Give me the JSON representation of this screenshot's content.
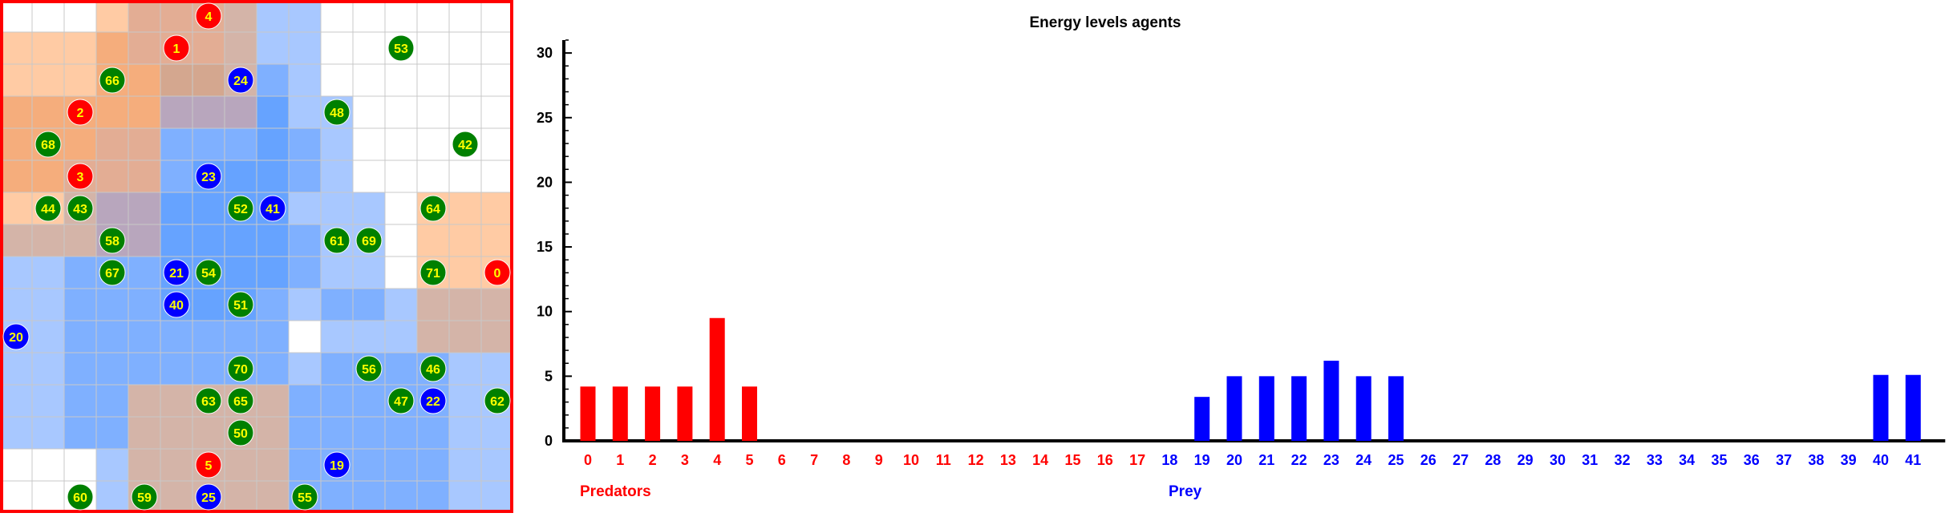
{
  "colors": {
    "predator": "#ff0000",
    "prey": "#0000ff",
    "grass": "#008000",
    "agent_label": "#ffff00",
    "frame": "#ff0000",
    "axis": "#000000"
  },
  "grid": {
    "rows": 16,
    "cols": 16,
    "cell_colors": [
      [
        "#ffffff",
        "#ffffff",
        "#ffffff",
        "#ffcba4",
        "#e3ad94",
        "#e3ad94",
        "#e3ad94",
        "#d4b4a8",
        "#a8c8ff",
        "#a8c8ff",
        "#ffffff",
        "#ffffff",
        "#ffffff",
        "#ffffff",
        "#ffffff",
        "#ffffff"
      ],
      [
        "#ffcba4",
        "#ffcba4",
        "#ffcba4",
        "#f5ad7c",
        "#e3ad94",
        "#e3ad94",
        "#e3ad94",
        "#d4b4a8",
        "#a8c8ff",
        "#a8c8ff",
        "#ffffff",
        "#ffffff",
        "#ffffff",
        "#ffffff",
        "#ffffff",
        "#ffffff"
      ],
      [
        "#ffcba4",
        "#ffcba4",
        "#ffcba4",
        "#f5ad7c",
        "#f5ad7c",
        "#d4a78f",
        "#d4a78f",
        "#d4b4a8",
        "#7fb0ff",
        "#a8c8ff",
        "#ffffff",
        "#ffffff",
        "#ffffff",
        "#ffffff",
        "#ffffff",
        "#ffffff"
      ],
      [
        "#f5ad7c",
        "#f5ad7c",
        "#f5ad7c",
        "#f5ad7c",
        "#f5ad7c",
        "#b8a6bd",
        "#b8a6bd",
        "#b8a6bd",
        "#66a3ff",
        "#a8c8ff",
        "#a8c8ff",
        "#ffffff",
        "#ffffff",
        "#ffffff",
        "#ffffff",
        "#ffffff"
      ],
      [
        "#f5ad7c",
        "#f5ad7c",
        "#f5ad7c",
        "#e3ad94",
        "#e3ad94",
        "#7fb0ff",
        "#7fb0ff",
        "#7fb0ff",
        "#66a3ff",
        "#7fb0ff",
        "#a8c8ff",
        "#ffffff",
        "#ffffff",
        "#ffffff",
        "#ffffff",
        "#ffffff"
      ],
      [
        "#f5ad7c",
        "#f5ad7c",
        "#e3ad94",
        "#e3ad94",
        "#e3ad94",
        "#7fb0ff",
        "#66a3ff",
        "#66a3ff",
        "#66a3ff",
        "#7fb0ff",
        "#a8c8ff",
        "#ffffff",
        "#ffffff",
        "#ffffff",
        "#ffffff",
        "#ffffff"
      ],
      [
        "#ffcba4",
        "#ffcba4",
        "#d4b4a8",
        "#b8a6bd",
        "#b8a6bd",
        "#66a3ff",
        "#66a3ff",
        "#66a3ff",
        "#66a3ff",
        "#a8c8ff",
        "#a8c8ff",
        "#a8c8ff",
        "#ffffff",
        "#ffcba4",
        "#ffcba4",
        "#ffcba4"
      ],
      [
        "#d4b4a8",
        "#d4b4a8",
        "#d4b4a8",
        "#b8a6bd",
        "#b8a6bd",
        "#66a3ff",
        "#66a3ff",
        "#66a3ff",
        "#66a3ff",
        "#7fb0ff",
        "#a8c8ff",
        "#a8c8ff",
        "#ffffff",
        "#ffcba4",
        "#ffcba4",
        "#ffcba4"
      ],
      [
        "#a8c8ff",
        "#a8c8ff",
        "#7fb0ff",
        "#7fb0ff",
        "#7fb0ff",
        "#66a3ff",
        "#66a3ff",
        "#66a3ff",
        "#66a3ff",
        "#7fb0ff",
        "#a8c8ff",
        "#a8c8ff",
        "#ffffff",
        "#ffcba4",
        "#ffcba4",
        "#ffcba4"
      ],
      [
        "#a8c8ff",
        "#a8c8ff",
        "#7fb0ff",
        "#7fb0ff",
        "#7fb0ff",
        "#66a3ff",
        "#66a3ff",
        "#66a3ff",
        "#7fb0ff",
        "#a8c8ff",
        "#7fb0ff",
        "#7fb0ff",
        "#a8c8ff",
        "#d4b4a8",
        "#d4b4a8",
        "#d4b4a8"
      ],
      [
        "#a8c8ff",
        "#a8c8ff",
        "#7fb0ff",
        "#7fb0ff",
        "#7fb0ff",
        "#7fb0ff",
        "#7fb0ff",
        "#7fb0ff",
        "#7fb0ff",
        "#ffffff",
        "#a8c8ff",
        "#a8c8ff",
        "#a8c8ff",
        "#d4b4a8",
        "#d4b4a8",
        "#d4b4a8"
      ],
      [
        "#a8c8ff",
        "#a8c8ff",
        "#7fb0ff",
        "#7fb0ff",
        "#7fb0ff",
        "#7fb0ff",
        "#7fb0ff",
        "#7fb0ff",
        "#7fb0ff",
        "#a8c8ff",
        "#7fb0ff",
        "#7fb0ff",
        "#7fb0ff",
        "#7fb0ff",
        "#a8c8ff",
        "#a8c8ff"
      ],
      [
        "#a8c8ff",
        "#a8c8ff",
        "#7fb0ff",
        "#7fb0ff",
        "#d4b4a8",
        "#d4b4a8",
        "#d4b4a8",
        "#d4b4a8",
        "#d4b4a8",
        "#7fb0ff",
        "#7fb0ff",
        "#7fb0ff",
        "#7fb0ff",
        "#7fb0ff",
        "#a8c8ff",
        "#a8c8ff"
      ],
      [
        "#a8c8ff",
        "#a8c8ff",
        "#7fb0ff",
        "#7fb0ff",
        "#d4b4a8",
        "#d4b4a8",
        "#d4b4a8",
        "#d4b4a8",
        "#d4b4a8",
        "#7fb0ff",
        "#7fb0ff",
        "#7fb0ff",
        "#7fb0ff",
        "#7fb0ff",
        "#a8c8ff",
        "#a8c8ff"
      ],
      [
        "#ffffff",
        "#ffffff",
        "#ffffff",
        "#a8c8ff",
        "#d4b4a8",
        "#d4b4a8",
        "#d4b4a8",
        "#d4b4a8",
        "#d4b4a8",
        "#7fb0ff",
        "#7fb0ff",
        "#7fb0ff",
        "#7fb0ff",
        "#7fb0ff",
        "#a8c8ff",
        "#a8c8ff"
      ],
      [
        "#ffffff",
        "#ffffff",
        "#ffffff",
        "#a8c8ff",
        "#d4b4a8",
        "#d4b4a8",
        "#d4b4a8",
        "#d4b4a8",
        "#d4b4a8",
        "#7fb0ff",
        "#7fb0ff",
        "#7fb0ff",
        "#7fb0ff",
        "#7fb0ff",
        "#a8c8ff",
        "#a8c8ff"
      ]
    ],
    "agents": [
      {
        "id": "4",
        "kind": "predator",
        "col": 6,
        "row": 0
      },
      {
        "id": "1",
        "kind": "predator",
        "col": 5,
        "row": 1
      },
      {
        "id": "53",
        "kind": "grass",
        "col": 12,
        "row": 1
      },
      {
        "id": "66",
        "kind": "grass",
        "col": 3,
        "row": 2
      },
      {
        "id": "24",
        "kind": "prey",
        "col": 7,
        "row": 2
      },
      {
        "id": "2",
        "kind": "predator",
        "col": 2,
        "row": 3
      },
      {
        "id": "48",
        "kind": "grass",
        "col": 10,
        "row": 3
      },
      {
        "id": "68",
        "kind": "grass",
        "col": 1,
        "row": 4
      },
      {
        "id": "42",
        "kind": "grass",
        "col": 14,
        "row": 4
      },
      {
        "id": "3",
        "kind": "predator",
        "col": 2,
        "row": 5
      },
      {
        "id": "23",
        "kind": "prey",
        "col": 6,
        "row": 5
      },
      {
        "id": "44",
        "kind": "grass",
        "col": 1,
        "row": 6
      },
      {
        "id": "43",
        "kind": "grass",
        "col": 2,
        "row": 6
      },
      {
        "id": "52",
        "kind": "grass",
        "col": 7,
        "row": 6
      },
      {
        "id": "41",
        "kind": "prey",
        "col": 8,
        "row": 6
      },
      {
        "id": "64",
        "kind": "grass",
        "col": 13,
        "row": 6
      },
      {
        "id": "58",
        "kind": "grass",
        "col": 3,
        "row": 7
      },
      {
        "id": "61",
        "kind": "grass",
        "col": 10,
        "row": 7
      },
      {
        "id": "69",
        "kind": "grass",
        "col": 11,
        "row": 7
      },
      {
        "id": "67",
        "kind": "grass",
        "col": 3,
        "row": 8
      },
      {
        "id": "21",
        "kind": "prey",
        "col": 5,
        "row": 8
      },
      {
        "id": "54",
        "kind": "grass",
        "col": 6,
        "row": 8
      },
      {
        "id": "71",
        "kind": "grass",
        "col": 13,
        "row": 8
      },
      {
        "id": "0",
        "kind": "predator",
        "col": 15,
        "row": 8
      },
      {
        "id": "40",
        "kind": "prey",
        "col": 5,
        "row": 9
      },
      {
        "id": "51",
        "kind": "grass",
        "col": 7,
        "row": 9
      },
      {
        "id": "20",
        "kind": "prey",
        "col": 0,
        "row": 10
      },
      {
        "id": "70",
        "kind": "grass",
        "col": 7,
        "row": 11
      },
      {
        "id": "56",
        "kind": "grass",
        "col": 11,
        "row": 11
      },
      {
        "id": "46",
        "kind": "grass",
        "col": 13,
        "row": 11
      },
      {
        "id": "63",
        "kind": "grass",
        "col": 6,
        "row": 12
      },
      {
        "id": "65",
        "kind": "grass",
        "col": 7,
        "row": 12
      },
      {
        "id": "47",
        "kind": "grass",
        "col": 12,
        "row": 12
      },
      {
        "id": "22",
        "kind": "prey",
        "col": 13,
        "row": 12
      },
      {
        "id": "62",
        "kind": "grass",
        "col": 15,
        "row": 12
      },
      {
        "id": "50",
        "kind": "grass",
        "col": 7,
        "row": 13
      },
      {
        "id": "5",
        "kind": "predator",
        "col": 6,
        "row": 14
      },
      {
        "id": "19",
        "kind": "prey",
        "col": 10,
        "row": 14
      },
      {
        "id": "60",
        "kind": "grass",
        "col": 2,
        "row": 15
      },
      {
        "id": "59",
        "kind": "grass",
        "col": 4,
        "row": 15
      },
      {
        "id": "25",
        "kind": "prey",
        "col": 6,
        "row": 15
      },
      {
        "id": "55",
        "kind": "grass",
        "col": 9,
        "row": 15
      }
    ]
  },
  "chart_data": {
    "type": "bar",
    "title": "Energy levels agents",
    "ylim": [
      0,
      31
    ],
    "yticks": [
      0,
      5,
      10,
      15,
      20,
      25,
      30
    ],
    "grid": false,
    "categories": [
      "0",
      "1",
      "2",
      "3",
      "4",
      "5",
      "6",
      "7",
      "8",
      "9",
      "10",
      "11",
      "12",
      "13",
      "14",
      "15",
      "16",
      "17",
      "18",
      "19",
      "20",
      "21",
      "22",
      "23",
      "24",
      "25",
      "26",
      "27",
      "28",
      "29",
      "30",
      "31",
      "32",
      "33",
      "34",
      "35",
      "36",
      "37",
      "38",
      "39",
      "40",
      "41"
    ],
    "category_colors": [
      "#ff0000",
      "#ff0000",
      "#ff0000",
      "#ff0000",
      "#ff0000",
      "#ff0000",
      "#ff0000",
      "#ff0000",
      "#ff0000",
      "#ff0000",
      "#ff0000",
      "#ff0000",
      "#ff0000",
      "#ff0000",
      "#ff0000",
      "#ff0000",
      "#ff0000",
      "#ff0000",
      "#0000ff",
      "#0000ff",
      "#0000ff",
      "#0000ff",
      "#0000ff",
      "#0000ff",
      "#0000ff",
      "#0000ff",
      "#0000ff",
      "#0000ff",
      "#0000ff",
      "#0000ff",
      "#0000ff",
      "#0000ff",
      "#0000ff",
      "#0000ff",
      "#0000ff",
      "#0000ff",
      "#0000ff",
      "#0000ff",
      "#0000ff",
      "#0000ff",
      "#0000ff",
      "#0000ff"
    ],
    "values": [
      4.2,
      4.2,
      4.2,
      4.2,
      9.5,
      4.2,
      0,
      0,
      0,
      0,
      0,
      0,
      0,
      0,
      0,
      0,
      0,
      0,
      0,
      3.4,
      5.0,
      5.0,
      5.0,
      6.2,
      5.0,
      5.0,
      0,
      0,
      0,
      0,
      0,
      0,
      0,
      0,
      0,
      0,
      0,
      0,
      0,
      0,
      5.1,
      5.1
    ],
    "groups": [
      {
        "label": "Predators",
        "color": "#ff0000"
      },
      {
        "label": "Prey",
        "color": "#0000ff"
      }
    ]
  }
}
